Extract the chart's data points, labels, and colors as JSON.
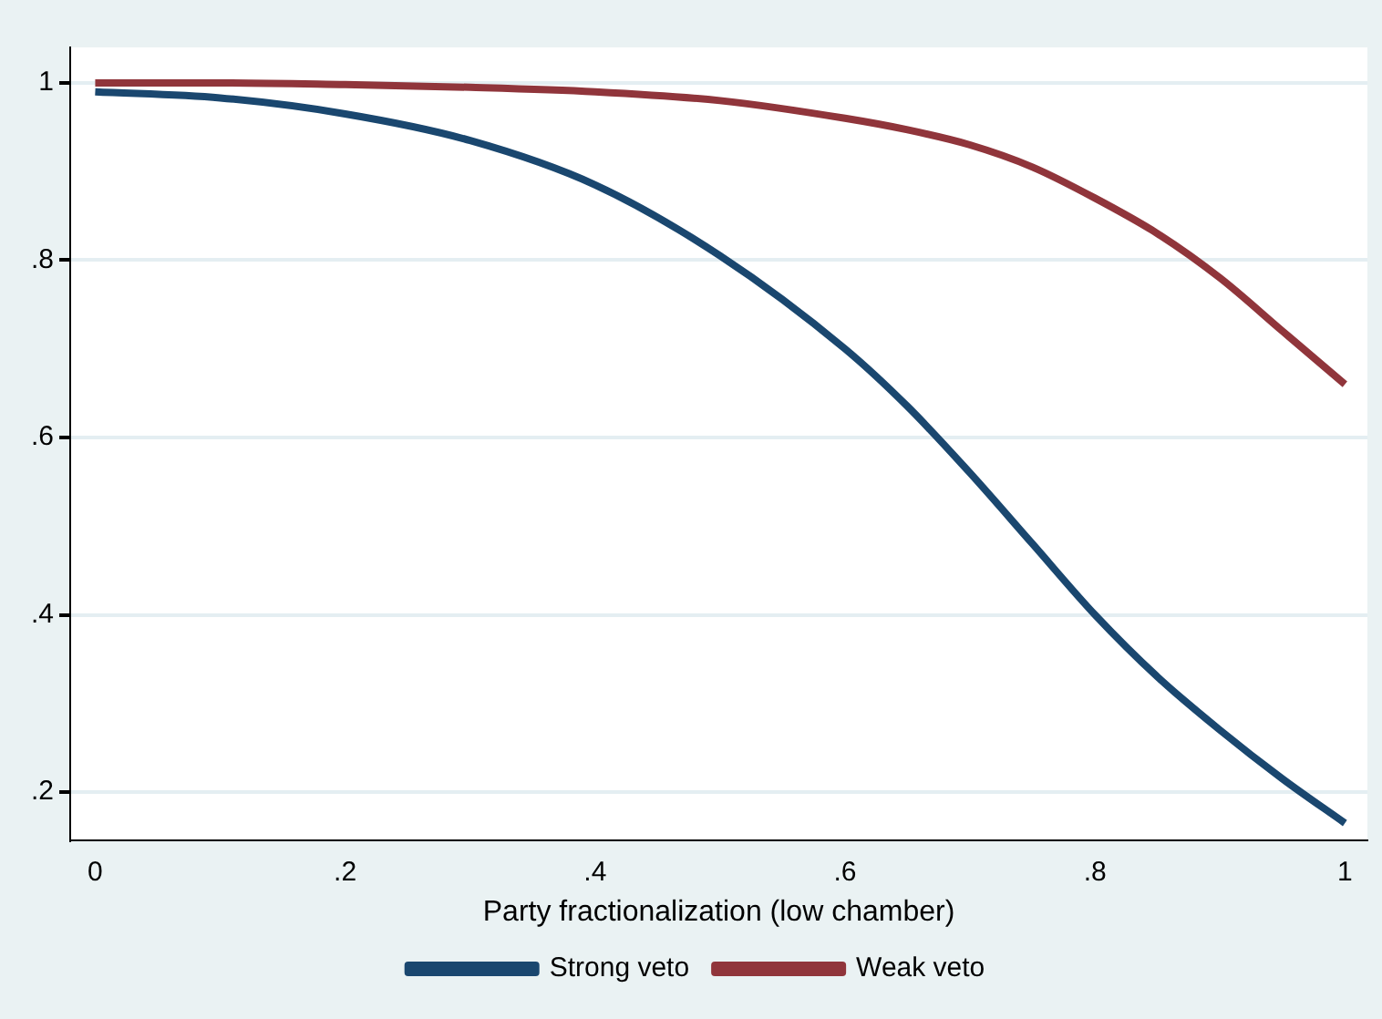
{
  "chart_data": {
    "type": "line",
    "xlabel": "Party fractionalization (low chamber)",
    "x": [
      0,
      0.1,
      0.2,
      0.3,
      0.4,
      0.5,
      0.6,
      0.65,
      0.7,
      0.75,
      0.8,
      0.85,
      0.9,
      0.95,
      1
    ],
    "series": [
      {
        "name": "Strong veto",
        "color": "#1a476f",
        "values": [
          0.99,
          0.983,
          0.965,
          0.935,
          0.885,
          0.805,
          0.7,
          0.635,
          0.56,
          0.48,
          0.4,
          0.33,
          0.27,
          0.215,
          0.165
        ]
      },
      {
        "name": "Weak veto",
        "color": "#90353b",
        "values": [
          1.0,
          1.0,
          0.998,
          0.995,
          0.99,
          0.98,
          0.96,
          0.947,
          0.93,
          0.905,
          0.87,
          0.83,
          0.78,
          0.72,
          0.66
        ]
      }
    ],
    "xlim": [
      -0.02,
      1.018
    ],
    "ylim": [
      0.146,
      1.04
    ],
    "xticks": [
      0,
      {
        "value": 0.2,
        "label": ".2"
      },
      {
        "value": 0.4,
        "label": ".4"
      },
      {
        "value": 0.6,
        "label": ".6"
      },
      {
        "value": 0.8,
        "label": ".8"
      },
      1
    ],
    "yticks": [
      {
        "value": 0.2,
        "label": ".2"
      },
      {
        "value": 0.4,
        "label": ".4"
      },
      {
        "value": 0.6,
        "label": ".6"
      },
      {
        "value": 0.8,
        "label": ".8"
      },
      1
    ],
    "grid": "y",
    "legend": "bottom",
    "marker": "none",
    "line_style": "solid"
  }
}
